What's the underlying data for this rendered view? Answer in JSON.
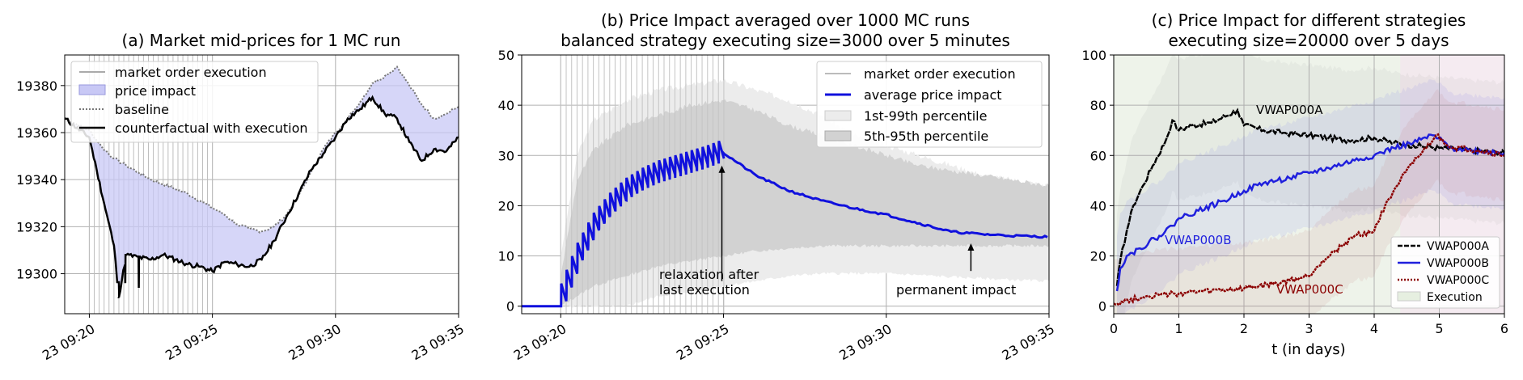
{
  "chart_data": [
    {
      "type": "line",
      "title": "(a) Market mid-prices for 1 MC run",
      "xlabel": "",
      "ylabel": "",
      "x_ticks": [
        "23 09:20",
        "23 09:25",
        "23 09:30",
        "23 09:35"
      ],
      "x_minutes": [
        -1,
        15
      ],
      "y_ticks": [
        19300,
        19320,
        19340,
        19360,
        19380
      ],
      "ylim": [
        19283,
        19393
      ],
      "grid": true,
      "legend_position": "top-left",
      "legend": [
        "market order execution",
        "price impact",
        "baseline",
        "counterfactual with execution"
      ],
      "series": [
        {
          "name": "baseline",
          "x": [
            -1,
            0,
            0.5,
            1,
            1.5,
            2,
            2.5,
            3,
            3.5,
            4,
            4.5,
            5,
            5.5,
            6,
            6.5,
            7,
            7.5,
            8,
            8.5,
            9,
            9.5,
            10,
            10.5,
            11,
            11.5,
            12,
            12.5,
            13,
            13.5,
            14,
            14.5,
            15
          ],
          "values": [
            19366,
            19361,
            19354,
            19349,
            19346,
            19343,
            19340,
            19338,
            19336,
            19334,
            19331,
            19328,
            19325,
            19321,
            19319,
            19318,
            19320,
            19325,
            19333,
            19343,
            19353,
            19360,
            19366,
            19373,
            19381,
            19384,
            19388,
            19380,
            19372,
            19366,
            19368,
            19371
          ]
        },
        {
          "name": "counterfactual with execution",
          "x": [
            -1,
            0,
            0.3,
            0.6,
            1,
            1.2,
            1.5,
            2,
            2.5,
            3,
            3.5,
            4,
            4.5,
            5,
            5.5,
            6,
            6.5,
            7,
            7.5,
            8,
            8.5,
            9,
            9.5,
            10,
            10.5,
            11,
            11.5,
            12,
            12.5,
            13,
            13.5,
            14,
            14.5,
            15
          ],
          "values": [
            19366,
            19358,
            19344,
            19330,
            19312,
            19290,
            19308,
            19307,
            19306,
            19308,
            19306,
            19304,
            19303,
            19301,
            19305,
            19304,
            19303,
            19306,
            19314,
            19324,
            19334,
            19344,
            19351,
            19358,
            19366,
            19370,
            19375,
            19368,
            19366,
            19356,
            19348,
            19353,
            19352,
            19358
          ]
        }
      ]
    },
    {
      "type": "line",
      "title": "(b) Price Impact averaged over 1000 MC runs",
      "subtitle": "balanced strategy executing size=3000 over 5 minutes",
      "xlabel": "",
      "ylabel": "",
      "x_ticks": [
        "23 09:20",
        "23 09:25",
        "23 09:30",
        "23 09:35"
      ],
      "x_minutes": [
        -1.2,
        15
      ],
      "y_ticks": [
        0,
        10,
        20,
        30,
        40,
        50
      ],
      "ylim": [
        -1.5,
        50
      ],
      "grid": true,
      "legend_position": "top-right",
      "legend": [
        "market order execution",
        "average price impact",
        "1st-99th percentile",
        "5th-95th percentile"
      ],
      "series": [
        {
          "name": "average price impact",
          "x": [
            -1.2,
            0,
            0.01,
            0.5,
            1,
            1.5,
            2,
            2.5,
            3,
            3.5,
            4,
            4.5,
            4.9,
            5,
            6,
            7,
            8,
            9,
            10,
            11,
            12,
            13,
            14,
            15
          ],
          "values": [
            0,
            0,
            3,
            11,
            17,
            21,
            24,
            26,
            27.5,
            28.5,
            29.5,
            30.5,
            31.5,
            30.5,
            26,
            23,
            21,
            19.5,
            18.2,
            16.5,
            14.8,
            14.3,
            14,
            13.8
          ]
        },
        {
          "name": "1st-99th percentile",
          "x": [
            0,
            0.5,
            1,
            2,
            3,
            4,
            5,
            6,
            7,
            8,
            9,
            10,
            11,
            12,
            13,
            14,
            15
          ],
          "upper": [
            10,
            30,
            37,
            41,
            43,
            44,
            45,
            43,
            41,
            38,
            34,
            32,
            30,
            28,
            26,
            25,
            24
          ],
          "lower": [
            0,
            0,
            0,
            0,
            2,
            3,
            4,
            5,
            6,
            6.5,
            6.5,
            6.5,
            6.2,
            5.8,
            5.5,
            5.2,
            5
          ]
        },
        {
          "name": "5th-95th percentile",
          "x": [
            0,
            0.5,
            1,
            2,
            3,
            4,
            5,
            6,
            7,
            8,
            9,
            10,
            11,
            12,
            13,
            14,
            15
          ],
          "upper": [
            6,
            25,
            31,
            36,
            38,
            40,
            41,
            39,
            36,
            34,
            32,
            30,
            28,
            27,
            26,
            25,
            24
          ],
          "lower": [
            0,
            2,
            4,
            6,
            8,
            9,
            10,
            11,
            11.5,
            12,
            12,
            12,
            12,
            12,
            12,
            12,
            12
          ]
        }
      ],
      "annotations": [
        {
          "text": "relaxation after last execution",
          "lines": [
            "relaxation after",
            "last execution"
          ],
          "x": 4.95,
          "y": 28
        },
        {
          "text": "permanent impact",
          "x": 12.6,
          "y": 13
        }
      ]
    },
    {
      "type": "line",
      "title": "(c) Price Impact for different strategies",
      "subtitle": "executing size=20000 over 5 days",
      "xlabel": "t (in days)",
      "ylabel": "",
      "x_ticks": [
        0,
        1,
        2,
        3,
        4,
        5,
        6
      ],
      "xlim": [
        0,
        6
      ],
      "y_ticks": [
        0,
        20,
        40,
        60,
        80,
        100
      ],
      "ylim": [
        -3,
        100
      ],
      "grid": true,
      "legend_position": "lower-right",
      "legend": [
        "VWAP000A",
        "VWAP000B",
        "VWAP000C",
        "Execution"
      ],
      "series": [
        {
          "name": "VWAP000A",
          "x": [
            0.05,
            0.1,
            0.2,
            0.3,
            0.45,
            0.6,
            0.8,
            0.9,
            1.0,
            1.2,
            1.5,
            1.9,
            2.0,
            2.3,
            2.6,
            3.0,
            3.3,
            3.6,
            4.0,
            4.3,
            4.6,
            5.0,
            5.5,
            6.0
          ],
          "values": [
            8,
            18,
            30,
            40,
            48,
            56,
            66,
            74,
            70,
            72,
            73,
            78,
            72,
            70,
            69,
            68,
            67,
            66,
            67,
            65,
            64,
            63,
            62,
            61
          ]
        },
        {
          "name": "VWAP000B",
          "x": [
            0.05,
            0.1,
            0.2,
            0.4,
            0.7,
            0.9,
            1.0,
            1.3,
            1.7,
            2.0,
            2.3,
            2.7,
            3.0,
            3.3,
            3.7,
            4.0,
            4.3,
            4.6,
            4.9,
            5.2,
            5.5,
            6.0
          ],
          "values": [
            6,
            15,
            20,
            23,
            28,
            32,
            35,
            38,
            42,
            46,
            49,
            51,
            53,
            55,
            58,
            60,
            63,
            65,
            68,
            63,
            62,
            61
          ]
        },
        {
          "name": "VWAP000C",
          "x": [
            0.0,
            0.5,
            1.0,
            1.5,
            2.0,
            2.5,
            3.0,
            3.2,
            3.5,
            3.7,
            4.0,
            4.2,
            4.4,
            4.6,
            4.8,
            4.95,
            5.2,
            5.6,
            6.0
          ],
          "values": [
            1,
            4,
            5,
            6,
            7,
            9,
            12,
            18,
            24,
            28,
            30,
            42,
            50,
            57,
            63,
            68,
            63,
            62,
            60
          ]
        }
      ],
      "series_labels": [
        "VWAP000A",
        "VWAP000B",
        "VWAP000C"
      ],
      "colors": {
        "VWAP000A": "#000000",
        "VWAP000B": "#1f1fdd",
        "VWAP000C": "#8b0000"
      }
    }
  ]
}
